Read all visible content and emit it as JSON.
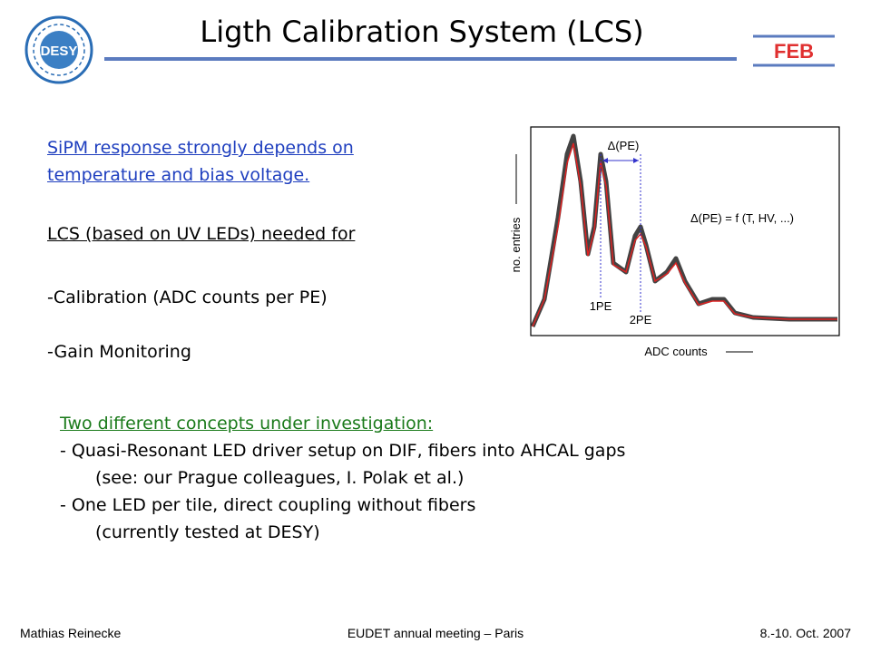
{
  "header": {
    "logo": "DESY",
    "title": "Ligth Calibration System (LCS)",
    "tag": "FEB"
  },
  "left_text": [
    "SiPM response strongly depends on",
    "temperature and bias voltage.",
    "LCS (based on UV LEDs) needed for",
    "-Calibration (ADC counts per PE)",
    "-Gain Monitoring"
  ],
  "figure": {
    "y_label": "no. entries",
    "x_label": "ADC counts",
    "delta_label": "Δ(PE)",
    "formula": "Δ(PE) = f (T, HV, ...)",
    "peak_labels": [
      "1PE",
      "2PE"
    ]
  },
  "concepts": {
    "heading": "Two different concepts under investigation:",
    "items": [
      "- Quasi-Resonant LED driver setup on DIF, fibers into AHCAL gaps",
      "(see: our Prague colleagues, I. Polak et al.)",
      "- One LED per tile, direct coupling without fibers",
      "(currently tested at DESY)"
    ]
  },
  "footer": {
    "author": "Mathias Reinecke",
    "event": "EUDET annual meeting – Paris",
    "date": "8.-10. Oct. 2007"
  }
}
